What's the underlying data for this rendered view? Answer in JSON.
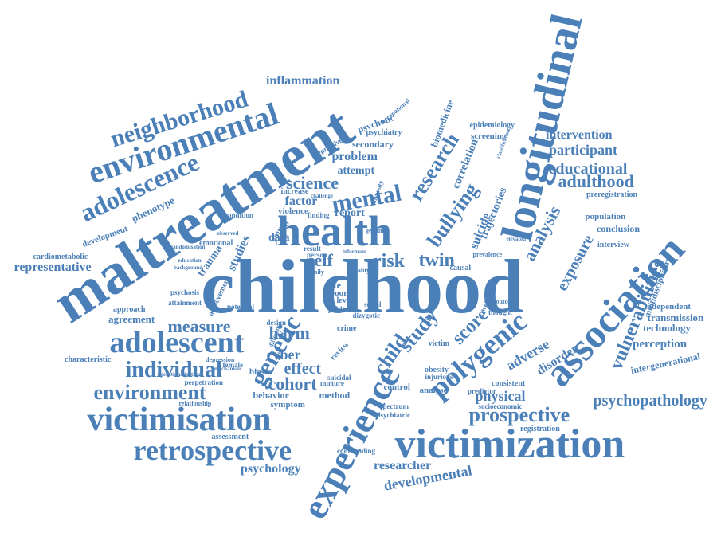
{
  "color": "#4a7fb8",
  "words": [
    {
      "text": "childhood"
    },
    {
      "text": "maltreatment"
    },
    {
      "text": "longitudinal"
    },
    {
      "text": "victimization"
    },
    {
      "text": "association"
    },
    {
      "text": "experience"
    },
    {
      "text": "health"
    },
    {
      "text": "victimisation"
    },
    {
      "text": "polygenic"
    },
    {
      "text": "environmental"
    },
    {
      "text": "adolescence"
    },
    {
      "text": "adolescent"
    },
    {
      "text": "retrospective"
    },
    {
      "text": "individual"
    },
    {
      "text": "genetic"
    },
    {
      "text": "environment"
    },
    {
      "text": "neighborhood"
    },
    {
      "text": "research"
    },
    {
      "text": "bullying"
    },
    {
      "text": "prospective"
    },
    {
      "text": "vulnerabilities"
    },
    {
      "text": "mental"
    },
    {
      "text": "science"
    },
    {
      "text": "study"
    },
    {
      "text": "score"
    },
    {
      "text": "twin"
    },
    {
      "text": "risk"
    },
    {
      "text": "self"
    },
    {
      "text": "analysis"
    },
    {
      "text": "exposure"
    },
    {
      "text": "adulthood"
    },
    {
      "text": "educational"
    },
    {
      "text": "participant"
    },
    {
      "text": "intervention"
    },
    {
      "text": "psychopathology"
    },
    {
      "text": "developmental"
    },
    {
      "text": "researcher"
    },
    {
      "text": "psychology"
    },
    {
      "text": "cohort"
    },
    {
      "text": "measure"
    },
    {
      "text": "harm"
    },
    {
      "text": "effect"
    },
    {
      "text": "cyber"
    },
    {
      "text": "physical"
    },
    {
      "text": "adverse"
    },
    {
      "text": "disorder"
    },
    {
      "text": "child"
    },
    {
      "text": "inflammation"
    },
    {
      "text": "representative"
    },
    {
      "text": "phenotype"
    },
    {
      "text": "studies"
    },
    {
      "text": "data"
    },
    {
      "text": "factor"
    },
    {
      "text": "report"
    },
    {
      "text": "problem"
    },
    {
      "text": "attempt"
    },
    {
      "text": "secondary"
    },
    {
      "text": "correlation"
    },
    {
      "text": "suicide"
    },
    {
      "text": "trajectories"
    },
    {
      "text": "biomedicine"
    },
    {
      "text": "psychotic"
    },
    {
      "text": "epidemiology"
    },
    {
      "text": "screening"
    },
    {
      "text": "perception"
    },
    {
      "text": "transmission"
    },
    {
      "text": "technology"
    },
    {
      "text": "independent"
    },
    {
      "text": "intergenerational"
    },
    {
      "text": "multidisciplinary"
    },
    {
      "text": "conclusion"
    },
    {
      "text": "population"
    },
    {
      "text": "interview"
    },
    {
      "text": "preregistration"
    },
    {
      "text": "cardiometabolic"
    },
    {
      "text": "development"
    },
    {
      "text": "agreement"
    },
    {
      "text": "approach"
    },
    {
      "text": "characteristic"
    },
    {
      "text": "behavior"
    },
    {
      "text": "method"
    },
    {
      "text": "symptom"
    },
    {
      "text": "control"
    },
    {
      "text": "analyse"
    },
    {
      "text": "consistent"
    },
    {
      "text": "registration"
    },
    {
      "text": "assessment"
    },
    {
      "text": "perpetration"
    },
    {
      "text": "trauma"
    },
    {
      "text": "emotional"
    },
    {
      "text": "violence"
    },
    {
      "text": "psychiatry"
    },
    {
      "text": "depressive"
    },
    {
      "text": "occupational"
    },
    {
      "text": "abuse"
    },
    {
      "text": "obesity"
    },
    {
      "text": "victim"
    },
    {
      "text": "crime"
    },
    {
      "text": "review"
    },
    {
      "text": "achievement"
    },
    {
      "text": "psychosis"
    },
    {
      "text": "attainment"
    },
    {
      "text": "potential"
    },
    {
      "text": "female"
    },
    {
      "text": "biases"
    },
    {
      "text": "depression"
    },
    {
      "text": "nurture"
    },
    {
      "text": "suicidal"
    },
    {
      "text": "spectrum"
    },
    {
      "text": "psychiatric"
    },
    {
      "text": "confounding"
    },
    {
      "text": "socioeconomic"
    },
    {
      "text": "relationship"
    },
    {
      "text": "operationalisations"
    },
    {
      "text": "young"
    },
    {
      "text": "person"
    },
    {
      "text": "increase"
    },
    {
      "text": "condition"
    },
    {
      "text": "finding"
    },
    {
      "text": "result"
    },
    {
      "text": "causal"
    },
    {
      "text": "family"
    },
    {
      "text": "life"
    },
    {
      "text": "poor"
    },
    {
      "text": "level"
    },
    {
      "text": "social"
    },
    {
      "text": "public"
    },
    {
      "text": "design"
    },
    {
      "text": "mechanism"
    },
    {
      "text": "dizygotic"
    },
    {
      "text": "predictor"
    },
    {
      "text": "thought"
    },
    {
      "text": "injurious"
    },
    {
      "text": "weight"
    },
    {
      "text": "classification"
    },
    {
      "text": "genome"
    },
    {
      "text": "outcome"
    },
    {
      "text": "difference"
    },
    {
      "text": "prevalence"
    },
    {
      "text": "education"
    },
    {
      "text": "background"
    },
    {
      "text": "randomisation"
    },
    {
      "text": "observed"
    },
    {
      "text": "challenge"
    },
    {
      "text": "adversity"
    },
    {
      "text": "informant"
    },
    {
      "text": "quality"
    },
    {
      "text": "elevated"
    }
  ]
}
